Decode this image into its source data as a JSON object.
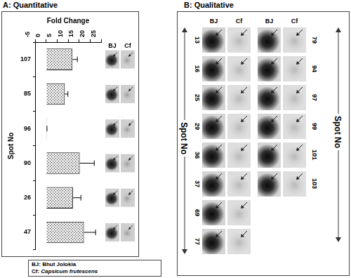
{
  "chart_data": {
    "type": "bar",
    "orientation": "horizontal",
    "title": "A: Quantitative",
    "x_label": "Fold Change",
    "y_label": "Spot No",
    "categories": [
      "107",
      "85",
      "96",
      "90",
      "26",
      "47"
    ],
    "values": [
      12,
      8.5,
      0.3,
      15.3,
      12.2,
      17.2
    ],
    "errors": [
      2.2,
      1.4,
      0.1,
      6.6,
      3.6,
      5.3
    ],
    "color": "#e6e6e6",
    "xlim": [
      -5,
      25
    ],
    "xticks": [
      -5,
      0,
      5,
      10,
      15,
      20,
      25
    ],
    "grid": false,
    "thumbnail_headers": [
      "BJ",
      "Cf"
    ]
  },
  "panel_b": {
    "title": "B: Qualitative",
    "axis_label": "Spot No",
    "column_headers": [
      "BJ",
      "Cf"
    ],
    "left_spots": [
      13,
      16,
      25,
      29,
      36,
      37,
      69,
      77
    ],
    "right_spots": [
      79,
      94,
      97,
      99,
      101,
      103
    ]
  },
  "key": [
    {
      "label": "BJ:",
      "name": "Bhut Jolokia"
    },
    {
      "label": "Cf:",
      "name": "Capsicum frutescens"
    }
  ]
}
